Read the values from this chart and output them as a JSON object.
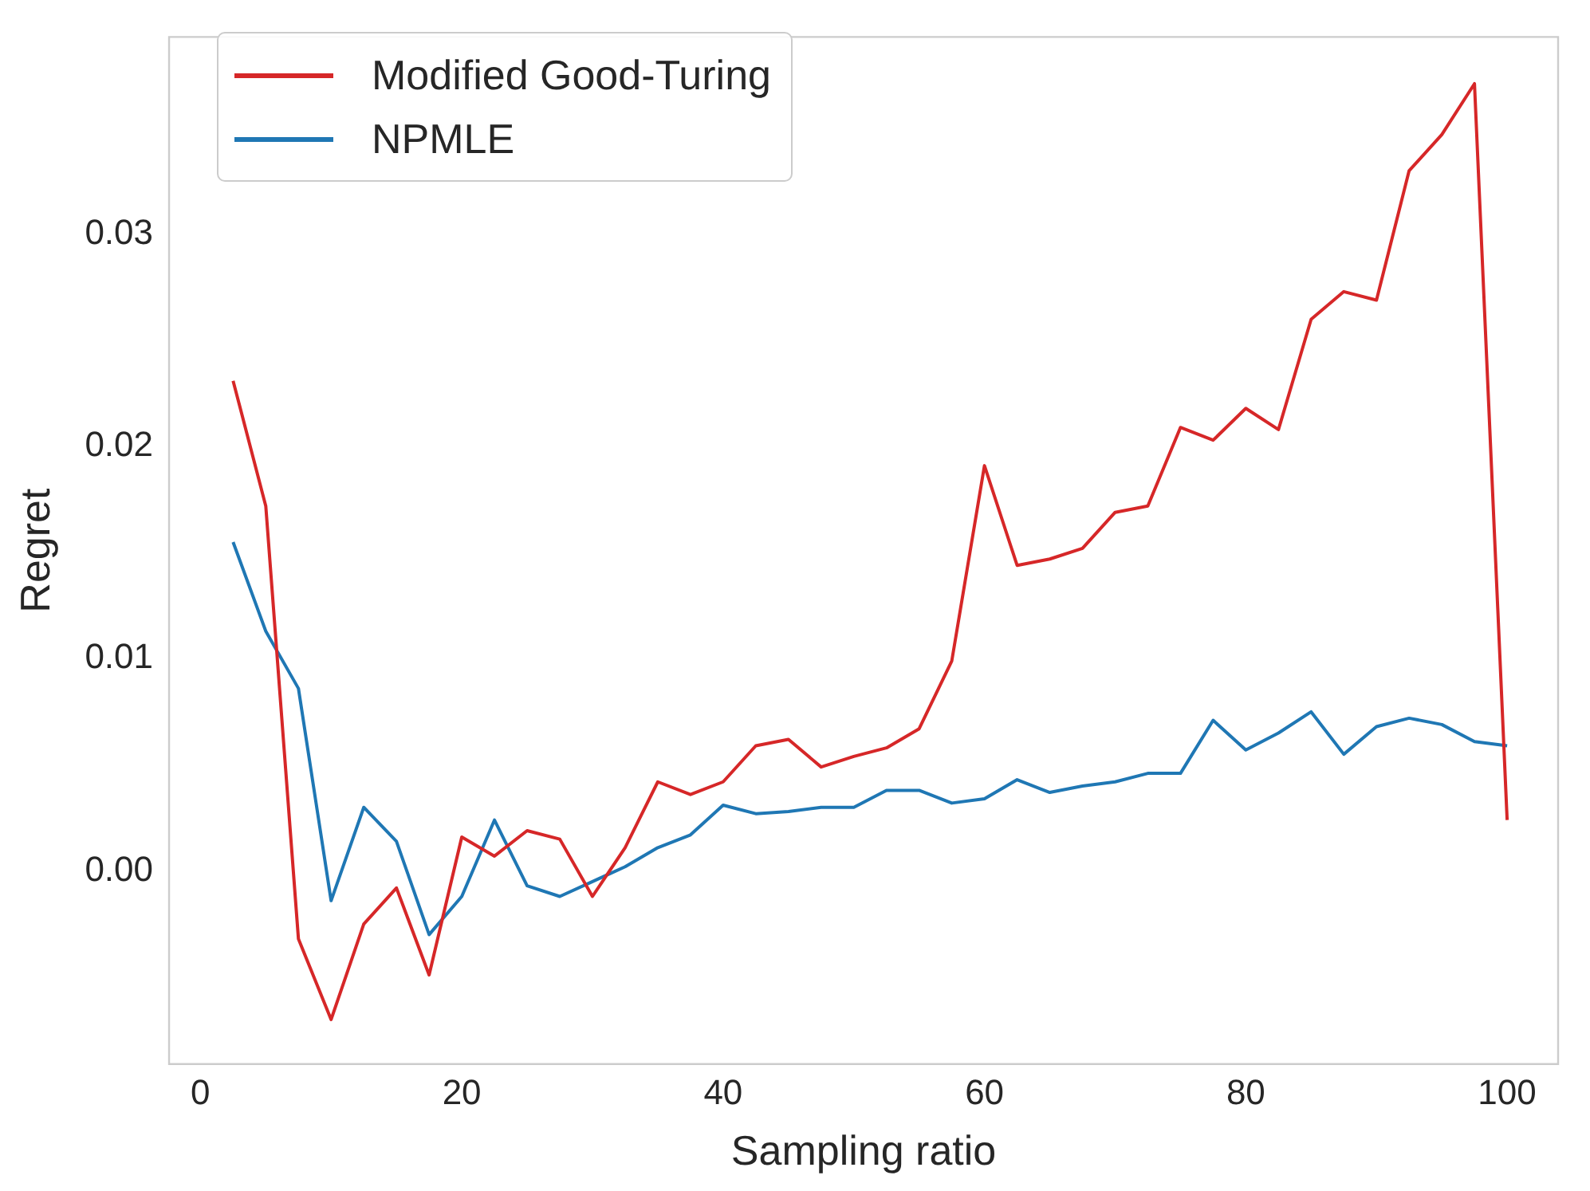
{
  "chart_data": {
    "type": "line",
    "xlabel": "Sampling ratio",
    "ylabel": "Regret",
    "xlim": [
      -2.4,
      103.9
    ],
    "ylim": [
      -0.0091,
      0.0393
    ],
    "xticks": [
      0,
      20,
      40,
      60,
      80,
      100
    ],
    "yticks": [
      {
        "value": 0,
        "label": "0.00"
      },
      {
        "value": 0.01,
        "label": "0.01"
      },
      {
        "value": 0.02,
        "label": "0.02"
      },
      {
        "value": 0.03,
        "label": "0.03"
      }
    ],
    "grid": false,
    "legend": "top left",
    "marker": "none",
    "line_style": "solid",
    "x": [
      2.5,
      5,
      7.5,
      10,
      12.5,
      15,
      17.5,
      20,
      22.5,
      25,
      27.5,
      30,
      32.5,
      35,
      37.5,
      40,
      42.5,
      45,
      47.5,
      50,
      52.5,
      55,
      57.5,
      60,
      62.5,
      65,
      67.5,
      70,
      72.5,
      75,
      77.5,
      80,
      82.5,
      85,
      87.5,
      90,
      92.5,
      95,
      97.5,
      100
    ],
    "series": [
      {
        "name": "Modified Good-Turing",
        "color": "#d62728",
        "values": [
          0.0231,
          0.0172,
          -0.0032,
          -0.007,
          -0.0025,
          -0.0008,
          -0.0049,
          0.0016,
          0.0007,
          0.0019,
          0.0015,
          -0.0012,
          0.0011,
          0.0042,
          0.0036,
          0.0042,
          0.0059,
          0.0062,
          0.0049,
          0.0054,
          0.0058,
          0.0067,
          0.0099,
          0.0191,
          0.0144,
          0.0147,
          0.0152,
          0.0169,
          0.0172,
          0.0209,
          0.0203,
          0.0218,
          0.0208,
          0.026,
          0.0273,
          0.0269,
          0.033,
          0.0347,
          0.0371,
          0.0024
        ]
      },
      {
        "name": "NPMLE",
        "color": "#1f77b4",
        "values": [
          0.0155,
          0.0113,
          0.0086,
          -0.0014,
          0.003,
          0.0014,
          -0.003,
          -0.0012,
          0.0024,
          -0.0007,
          -0.0012,
          -0.0005,
          0.0002,
          0.0011,
          0.0017,
          0.0031,
          0.0027,
          0.0028,
          0.003,
          0.003,
          0.0038,
          0.0038,
          0.0032,
          0.0034,
          0.0043,
          0.0037,
          0.004,
          0.0042,
          0.0046,
          0.0046,
          0.0071,
          0.0057,
          0.0065,
          0.0075,
          0.0055,
          0.0068,
          0.0072,
          0.0069,
          0.0061,
          0.0059
        ]
      }
    ]
  }
}
